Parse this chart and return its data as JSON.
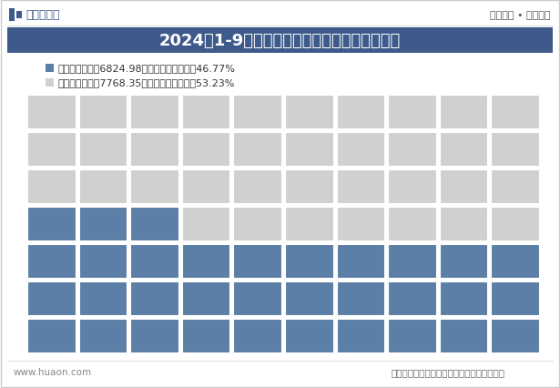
{
  "title": "2024年1-9月重庆建筑业企业签订合同金额结构",
  "header_bg": "#3d5a8a",
  "header_text_color": "#ffffff",
  "legend_items": [
    {
      "label": "本年新签合同额6824.98亿元，占签订合同的46.77%",
      "color": "#5b7fa6",
      "pct": 46.77
    },
    {
      "label": "上年结转合同额7768.35亿元，占签订合同的53.23%",
      "color": "#d0d0d0",
      "pct": 53.23
    }
  ],
  "grid_cols": 10,
  "grid_rows": 7,
  "blue_color": "#5b7fa6",
  "gray_color": "#d0d0d0",
  "bg_color": "#ffffff",
  "blue_pct": 46.77,
  "top_bar_color": "#3d5a8a",
  "top_text": "2024年1-9月重庆建筑业企业签订合同金额结构",
  "footer_text": "数据来源：国家统计局；华经产业研究院整理",
  "watermark_left": "www.huaon.com",
  "header_logo_text": "华经情报网",
  "header_right_text": "专业严谨 • 客观科学"
}
